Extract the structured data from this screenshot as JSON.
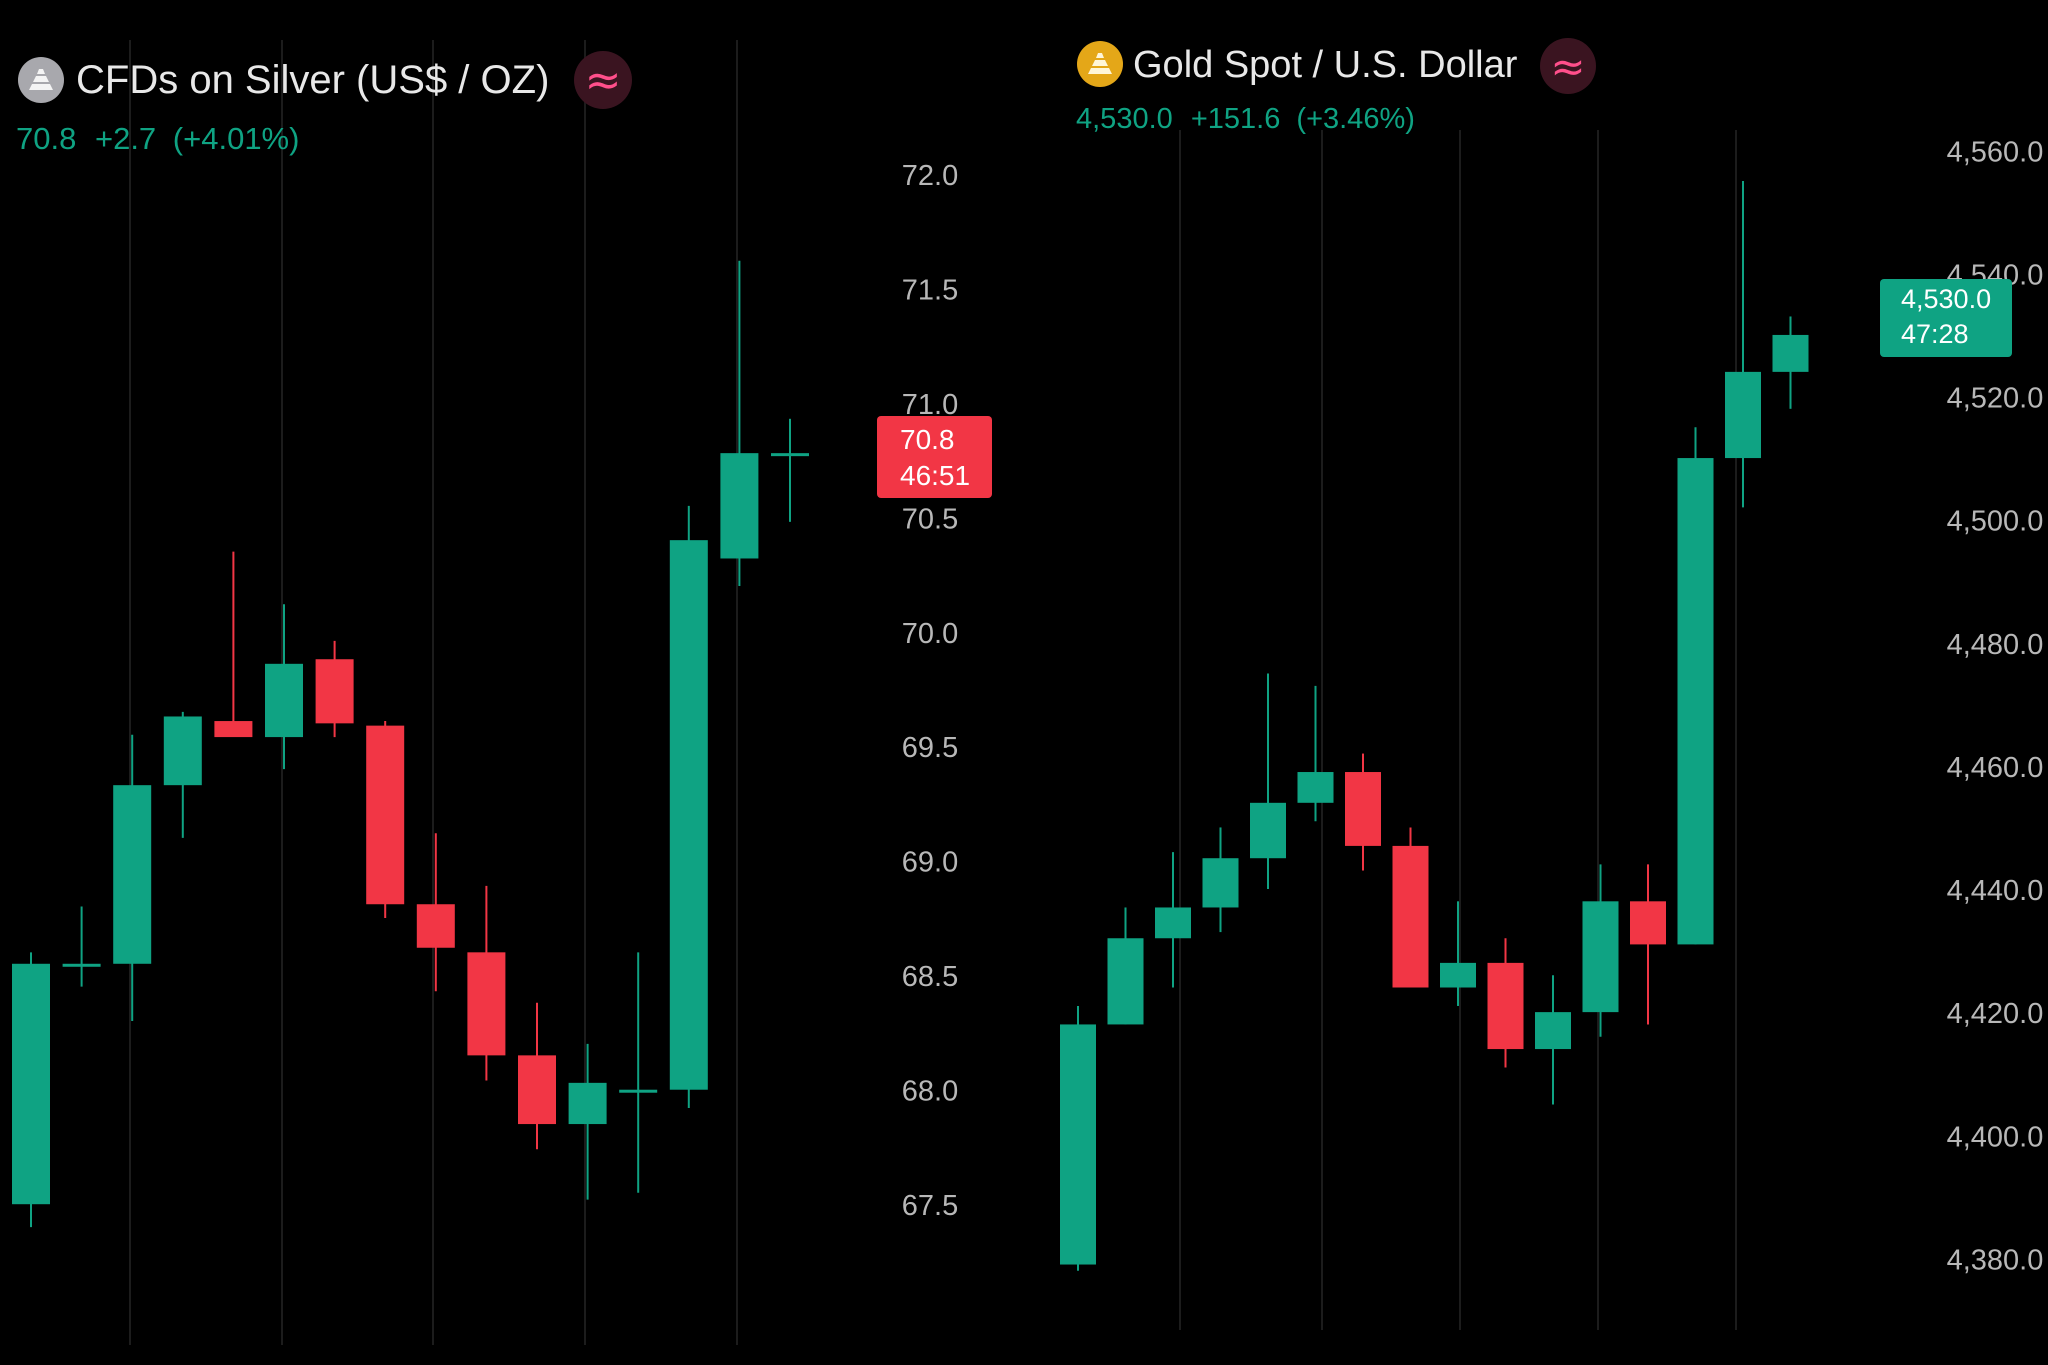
{
  "colors": {
    "background": "#000000",
    "up": "#0fa383",
    "down": "#f23645",
    "text": "#e8e8e8",
    "axis_text": "#b8b8b8",
    "grid": "#1c1c1c",
    "wave_badge_bg": "#3a1420",
    "wave_badge_fg": "#ff4f8b",
    "silver_icon": "#a8a8ad",
    "gold_icon": "#e4a718"
  },
  "chart_data": [
    {
      "type": "candlestick",
      "icon": "silver-bars-icon",
      "title": "CFDs on Silver (US$ / OZ)",
      "badge_icon": "wave-icon",
      "badge_symbol": "≈",
      "last": "70.8",
      "change": "+2.7",
      "change_pct": "(+4.01%)",
      "price_tag": {
        "price": "70.8",
        "countdown": "46:51",
        "color": "down"
      },
      "yticks": [
        72.0,
        71.5,
        71.0,
        70.5,
        70.0,
        69.5,
        69.0,
        68.5,
        68.0,
        67.5
      ],
      "ytick_labels": [
        "72.0",
        "71.5",
        "71.0",
        "70.5",
        "70.0",
        "69.5",
        "69.0",
        "68.5",
        "68.0",
        "67.5"
      ],
      "ylim": [
        67.3,
        72.2
      ],
      "grid_vertical": true,
      "candles": [
        {
          "o": 67.5,
          "h": 68.6,
          "l": 67.4,
          "c": 68.55
        },
        {
          "o": 68.55,
          "h": 68.8,
          "l": 68.45,
          "c": 68.55
        },
        {
          "o": 68.55,
          "h": 69.55,
          "l": 68.3,
          "c": 69.33
        },
        {
          "o": 69.33,
          "h": 69.65,
          "l": 69.1,
          "c": 69.63
        },
        {
          "o": 69.61,
          "h": 70.35,
          "l": 69.55,
          "c": 69.54
        },
        {
          "o": 69.54,
          "h": 70.12,
          "l": 69.4,
          "c": 69.86
        },
        {
          "o": 69.88,
          "h": 69.96,
          "l": 69.54,
          "c": 69.6
        },
        {
          "o": 69.59,
          "h": 69.61,
          "l": 68.75,
          "c": 68.81
        },
        {
          "o": 68.81,
          "h": 69.12,
          "l": 68.43,
          "c": 68.62
        },
        {
          "o": 68.6,
          "h": 68.89,
          "l": 68.04,
          "c": 68.15
        },
        {
          "o": 68.15,
          "h": 68.38,
          "l": 67.74,
          "c": 67.85
        },
        {
          "o": 67.85,
          "h": 68.2,
          "l": 67.52,
          "c": 68.03
        },
        {
          "o": 68.0,
          "h": 68.6,
          "l": 67.55,
          "c": 68.0
        },
        {
          "o": 68.0,
          "h": 70.55,
          "l": 67.92,
          "c": 70.4
        },
        {
          "o": 70.32,
          "h": 71.62,
          "l": 70.2,
          "c": 70.78
        },
        {
          "o": 70.78,
          "h": 70.93,
          "l": 70.48,
          "c": 70.78
        }
      ]
    },
    {
      "type": "candlestick",
      "icon": "gold-bars-icon",
      "title": "Gold Spot / U.S. Dollar",
      "badge_icon": "wave-icon",
      "badge_symbol": "≈",
      "last": "4,530.0",
      "change": "+151.6",
      "change_pct": "(+3.46%)",
      "price_tag": {
        "price": "4,530.0",
        "countdown": "47:28",
        "color": "up"
      },
      "yticks": [
        4560.0,
        4540.0,
        4520.0,
        4500.0,
        4480.0,
        4460.0,
        4440.0,
        4420.0,
        4400.0,
        4380.0
      ],
      "ytick_labels": [
        "4,560.0",
        "4,540.0",
        "4,520.0",
        "4,500.0",
        "4,480.0",
        "4,460.0",
        "4,440.0",
        "4,420.0",
        "4,400.0",
        "4,380.0"
      ],
      "ylim": [
        4376,
        4568
      ],
      "grid_vertical": true,
      "candles": [
        {
          "o": 4379,
          "h": 4421,
          "l": 4378,
          "c": 4418
        },
        {
          "o": 4418,
          "h": 4437,
          "l": 4418,
          "c": 4432
        },
        {
          "o": 4432,
          "h": 4446,
          "l": 4424,
          "c": 4437
        },
        {
          "o": 4437,
          "h": 4450,
          "l": 4433,
          "c": 4445
        },
        {
          "o": 4445,
          "h": 4475,
          "l": 4440,
          "c": 4454
        },
        {
          "o": 4454,
          "h": 4473,
          "l": 4451,
          "c": 4459
        },
        {
          "o": 4459,
          "h": 4462,
          "l": 4443,
          "c": 4447
        },
        {
          "o": 4447,
          "h": 4450,
          "l": 4424,
          "c": 4424
        },
        {
          "o": 4424,
          "h": 4438,
          "l": 4421,
          "c": 4428
        },
        {
          "o": 4428,
          "h": 4432,
          "l": 4411,
          "c": 4414
        },
        {
          "o": 4414,
          "h": 4426,
          "l": 4405,
          "c": 4420
        },
        {
          "o": 4420,
          "h": 4444,
          "l": 4416,
          "c": 4438
        },
        {
          "o": 4438,
          "h": 4444,
          "l": 4418,
          "c": 4431
        },
        {
          "o": 4431,
          "h": 4515,
          "l": 4431,
          "c": 4510
        },
        {
          "o": 4510,
          "h": 4555,
          "l": 4502,
          "c": 4524
        },
        {
          "o": 4524,
          "h": 4533,
          "l": 4518,
          "c": 4530
        }
      ]
    }
  ]
}
